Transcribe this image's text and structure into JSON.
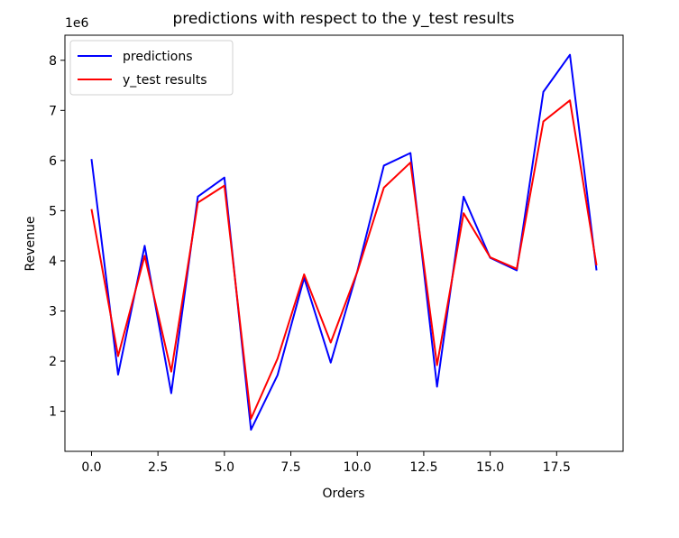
{
  "chart_data": {
    "type": "line",
    "title": "predictions with respect to the y_test results",
    "xlabel": "Orders",
    "ylabel": "Revenue",
    "y_offset_label": "1e6",
    "xlim": [
      -1,
      20
    ],
    "ylim": [
      0.2,
      8.5
    ],
    "x_ticks": [
      0,
      2.5,
      5,
      7.5,
      10,
      12.5,
      15,
      17.5
    ],
    "x_tick_labels": [
      "0.0",
      "2.5",
      "5.0",
      "7.5",
      "10.0",
      "12.5",
      "15.0",
      "17.5"
    ],
    "y_ticks": [
      1,
      2,
      3,
      4,
      5,
      6,
      7,
      8
    ],
    "y_tick_labels": [
      "1",
      "2",
      "3",
      "4",
      "5",
      "6",
      "7",
      "8"
    ],
    "legend_position": "top-left",
    "grid": false,
    "x": [
      0,
      1,
      2,
      3,
      4,
      5,
      6,
      7,
      8,
      9,
      10,
      11,
      12,
      13,
      14,
      15,
      16,
      17,
      18,
      19
    ],
    "series": [
      {
        "name": "predictions",
        "color": "#0000ff",
        "values": [
          6.03,
          1.73,
          4.3,
          1.36,
          5.28,
          5.66,
          0.63,
          1.72,
          3.66,
          1.97,
          3.79,
          5.9,
          6.15,
          1.49,
          5.28,
          4.06,
          3.81,
          7.37,
          8.11,
          3.81
        ]
      },
      {
        "name": "y_test results",
        "color": "#ff0000",
        "values": [
          5.03,
          2.1,
          4.1,
          1.79,
          5.16,
          5.5,
          0.85,
          2.05,
          3.73,
          2.37,
          3.78,
          5.46,
          5.96,
          1.92,
          4.95,
          4.07,
          3.84,
          6.78,
          7.2,
          3.91
        ]
      }
    ]
  }
}
